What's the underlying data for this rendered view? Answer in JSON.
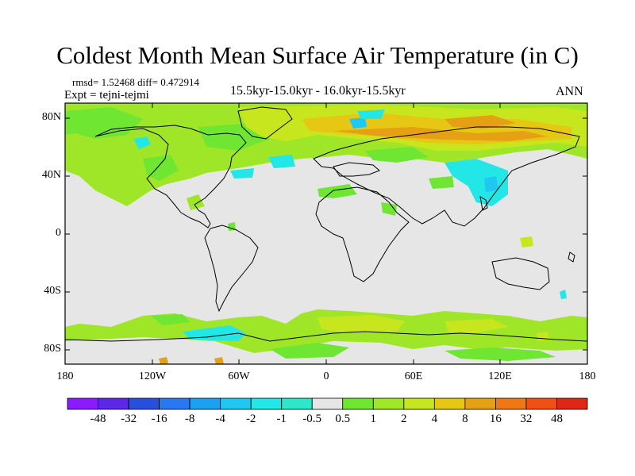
{
  "title": "Coldest Month Mean Surface Air Temperature (in C)",
  "stats": "rmsd= 1.52468 diff= 0.472914",
  "experiment": "Expt = tejni-tejmi",
  "period": "15.5kyr-15.0kyr - 16.0kyr-15.5kyr",
  "season": "ANN",
  "map": {
    "lat_ticks": [
      "80N",
      "40N",
      "0",
      "40S",
      "80S"
    ],
    "lon_ticks": [
      "180",
      "120W",
      "60W",
      "0",
      "60E",
      "120E",
      "180"
    ],
    "background_color": "#e6e6e6"
  },
  "colorbar": {
    "colors": [
      "#8c1aff",
      "#5a28e6",
      "#2850dc",
      "#2878f0",
      "#1ea0f0",
      "#1ec8f0",
      "#23e6e6",
      "#2ee6c8",
      "#e6e6e6",
      "#6ee632",
      "#a0e628",
      "#c8e61e",
      "#e6c814",
      "#e6a014",
      "#f07814",
      "#f05014",
      "#dc2814"
    ],
    "labels": [
      "-48",
      "-32",
      "-16",
      "-8",
      "-4",
      "-2",
      "-1",
      "-0.5",
      "0.5",
      "1",
      "2",
      "4",
      "8",
      "16",
      "32",
      "48"
    ]
  }
}
